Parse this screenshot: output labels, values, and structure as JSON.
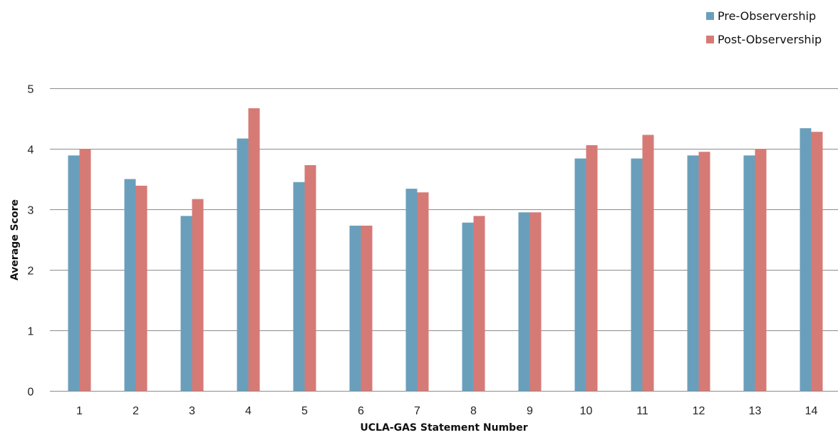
{
  "chart_data": {
    "type": "bar",
    "title": "",
    "xlabel": "UCLA-GAS Statement Number",
    "ylabel": "Average Score",
    "ylim": [
      0,
      5
    ],
    "yticks": [
      0,
      1,
      2,
      3,
      4,
      5
    ],
    "grid": true,
    "legend_position": "top-right",
    "categories": [
      "1",
      "2",
      "3",
      "4",
      "5",
      "6",
      "7",
      "8",
      "9",
      "10",
      "11",
      "12",
      "13",
      "14"
    ],
    "series": [
      {
        "name": "Pre-Observership",
        "color": "#6a9fbc",
        "values": [
          3.89,
          3.5,
          2.89,
          4.17,
          3.45,
          2.73,
          3.34,
          2.78,
          2.95,
          3.84,
          3.84,
          3.89,
          3.89,
          4.34
        ]
      },
      {
        "name": "Post-Observership",
        "color": "#d67a76",
        "values": [
          4.0,
          3.39,
          3.17,
          4.67,
          3.73,
          2.73,
          3.28,
          2.89,
          2.95,
          4.06,
          4.23,
          3.95,
          4.0,
          4.28
        ]
      }
    ]
  }
}
